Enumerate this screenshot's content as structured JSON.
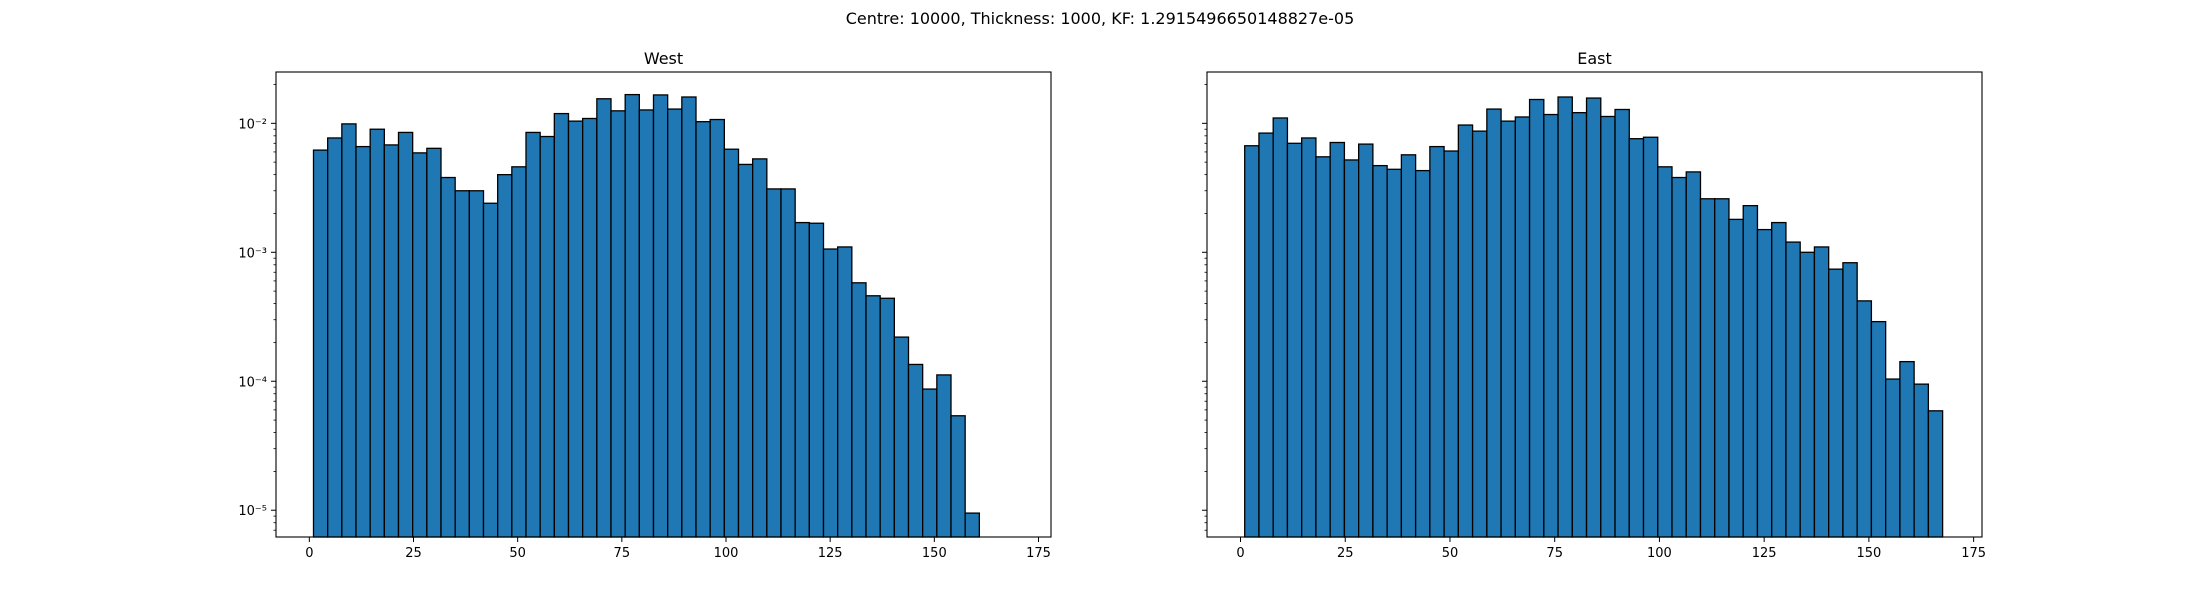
{
  "figure": {
    "suptitle": "Centre: 10000, Thickness: 1000, KF: 1.2915496650148827e-05"
  },
  "chart_data": [
    {
      "type": "bar",
      "title": "West",
      "xlabel": "",
      "ylabel": "",
      "y_scale": "log",
      "xlim": [
        -8,
        178
      ],
      "ylim": [
        6.2e-06,
        0.025
      ],
      "x_ticks": [
        0,
        25,
        50,
        75,
        100,
        125,
        150,
        175
      ],
      "x_tick_labels": [
        "0",
        "25",
        "50",
        "75",
        "100",
        "125",
        "150",
        "175"
      ],
      "y_ticks": [
        1e-05,
        0.0001,
        0.001,
        0.01
      ],
      "y_tick_labels": [
        "10⁻⁵",
        "10⁻⁴",
        "10⁻³",
        "10⁻²"
      ],
      "bar_color": "#1f77b4",
      "edge_color": "#000000",
      "grid": false,
      "bin_start": 1,
      "bin_width": 3.4,
      "values": [
        0.0062,
        0.0077,
        0.0099,
        0.0066,
        0.009,
        0.0068,
        0.0085,
        0.0059,
        0.0064,
        0.0038,
        0.003,
        0.003,
        0.0024,
        0.004,
        0.0046,
        0.0085,
        0.0079,
        0.0119,
        0.0104,
        0.0109,
        0.0155,
        0.0125,
        0.0167,
        0.0127,
        0.0166,
        0.0129,
        0.016,
        0.0103,
        0.0107,
        0.0063,
        0.0048,
        0.0053,
        0.0031,
        0.0031,
        0.0017,
        0.00168,
        0.00106,
        0.0011,
        0.00058,
        0.00046,
        0.00044,
        0.00022,
        0.000135,
        8.7e-05,
        0.000112,
        5.4e-05,
        9.5e-06
      ]
    },
    {
      "type": "bar",
      "title": "East",
      "xlabel": "",
      "ylabel": "",
      "y_scale": "log",
      "xlim": [
        -8,
        177
      ],
      "ylim": [
        6.2e-06,
        0.025
      ],
      "x_ticks": [
        0,
        25,
        50,
        75,
        100,
        125,
        150,
        175
      ],
      "x_tick_labels": [
        "0",
        "25",
        "50",
        "75",
        "100",
        "125",
        "150",
        "175"
      ],
      "y_ticks": [
        1e-05,
        0.0001,
        0.001,
        0.01
      ],
      "y_tick_labels": [
        "",
        "",
        "",
        ""
      ],
      "bar_color": "#1f77b4",
      "edge_color": "#000000",
      "grid": false,
      "bin_start": 1,
      "bin_width": 3.4,
      "values": [
        0.0067,
        0.0084,
        0.011,
        0.007,
        0.0077,
        0.0055,
        0.0071,
        0.0052,
        0.0069,
        0.0047,
        0.0044,
        0.0057,
        0.0043,
        0.0066,
        0.0061,
        0.0097,
        0.0087,
        0.0129,
        0.0104,
        0.0112,
        0.0153,
        0.0117,
        0.016,
        0.0121,
        0.0157,
        0.0113,
        0.0128,
        0.0076,
        0.0078,
        0.0046,
        0.0038,
        0.0042,
        0.0026,
        0.0026,
        0.0018,
        0.0023,
        0.0015,
        0.0017,
        0.0012,
        0.001,
        0.0011,
        0.00074,
        0.00083,
        0.00042,
        0.00029,
        0.000104,
        0.000142,
        9.5e-05,
        5.9e-05
      ]
    }
  ]
}
